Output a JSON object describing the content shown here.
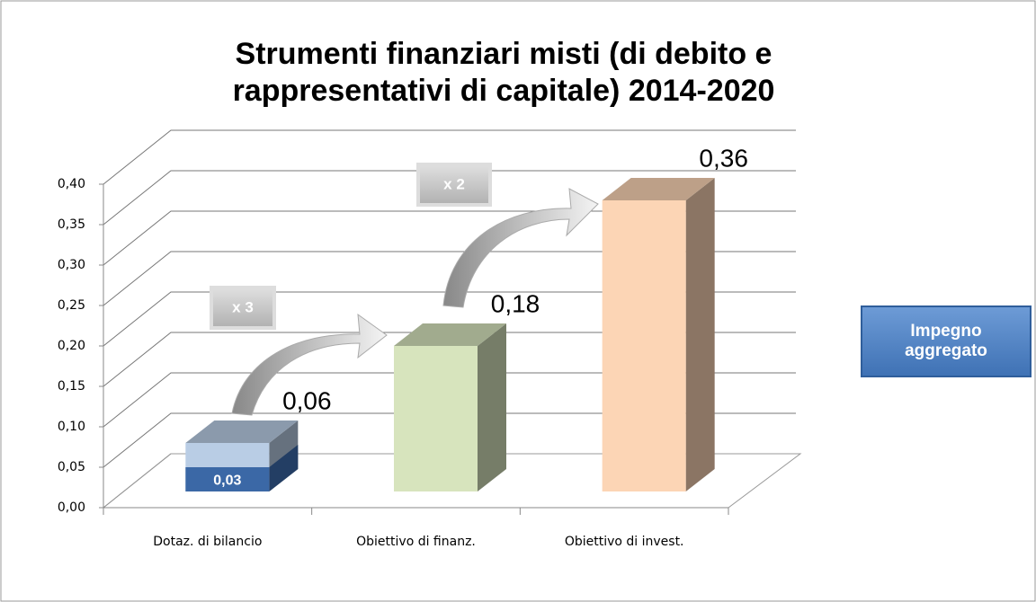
{
  "chart_data": {
    "type": "bar",
    "title": "Strumenti finanziari misti (di debito e rappresentativi di capitale) 2014-2020",
    "categories": [
      "Dotaz. di bilancio",
      "Obiettivo di finanz.",
      "Obiettivo di invest."
    ],
    "series": [
      {
        "name": "Impegno aggregato",
        "colors": [
          "#b9cde5",
          "#d7e4bd",
          "#fcd5b5"
        ],
        "values": [
          0.06,
          0.18,
          0.36
        ],
        "value_labels": [
          "0,06",
          "0,18",
          "0,36"
        ]
      }
    ],
    "inner": {
      "color": "#3b68a6",
      "values": [
        0.03,
        null,
        null
      ],
      "value_labels": [
        "0,03",
        null,
        null
      ]
    },
    "annotations": [
      "x 3",
      "x 2"
    ],
    "ylim": [
      0,
      0.4
    ],
    "yticks": [
      {
        "value": 0,
        "label": "0,00"
      },
      {
        "value": 0.05,
        "label": "0,05"
      },
      {
        "value": 0.1,
        "label": "0,10"
      },
      {
        "value": 0.15,
        "label": "0,15"
      },
      {
        "value": 0.2,
        "label": "0,20"
      },
      {
        "value": 0.25,
        "label": "0,25"
      },
      {
        "value": 0.3,
        "label": "0,30"
      },
      {
        "value": 0.35,
        "label": "0,35"
      },
      {
        "value": 0.4,
        "label": "0,40"
      }
    ],
    "grid": true
  }
}
